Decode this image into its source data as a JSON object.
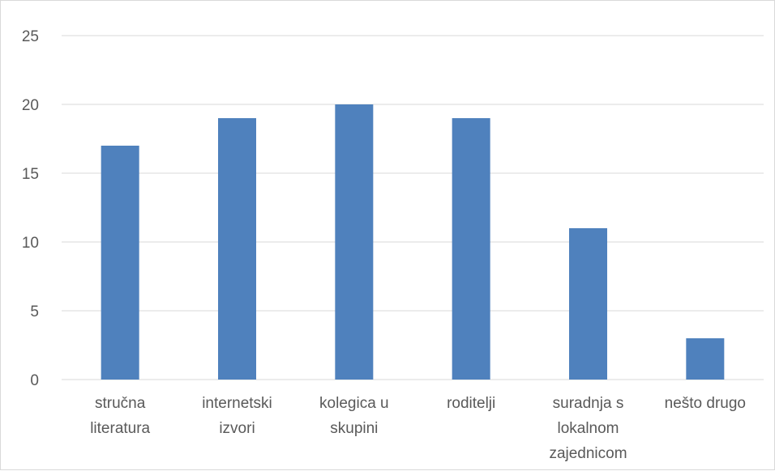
{
  "chart_data": {
    "type": "bar",
    "categories": [
      [
        "stručna",
        "literatura"
      ],
      [
        "internetski",
        "izvori"
      ],
      [
        "kolegica u",
        "skupini"
      ],
      [
        "roditelji"
      ],
      [
        "suradnja s",
        "lokalnom",
        "zajednicom"
      ],
      [
        "nešto drugo"
      ]
    ],
    "values": [
      17,
      19,
      20,
      19,
      11,
      3
    ],
    "ylim": [
      0,
      25
    ],
    "yticks": [
      0,
      5,
      10,
      15,
      20,
      25
    ],
    "grid": true,
    "legend": "none",
    "colors": {
      "bar": "#4f81bd",
      "grid": "#d9d9d9",
      "text": "#595959"
    }
  }
}
